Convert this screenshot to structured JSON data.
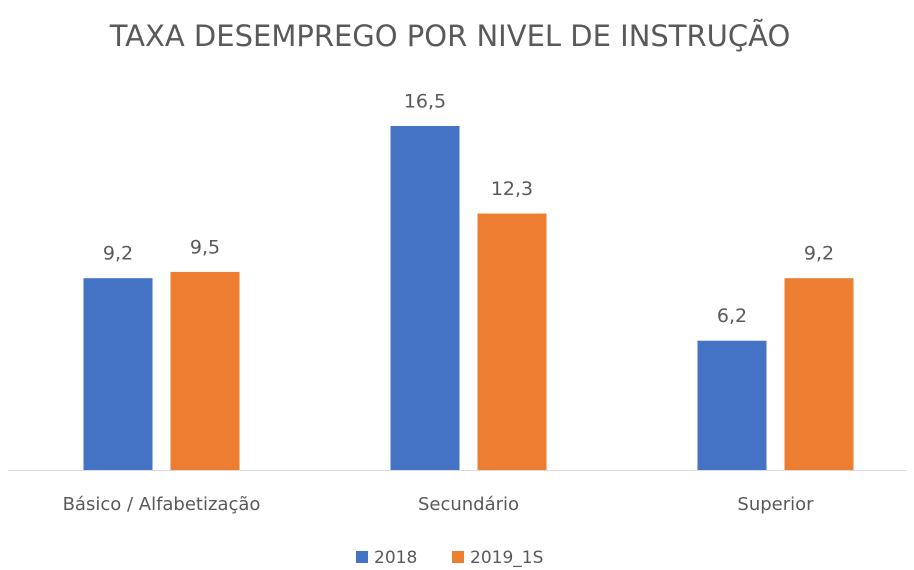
{
  "chart_data": {
    "type": "bar",
    "title": "TAXA DESEMPREGO POR NIVEL DE INSTRUÇÃO",
    "categories": [
      "Básico / Alfabetização",
      "Secundário",
      "Superior"
    ],
    "series": [
      {
        "name": "2018",
        "color": "#4472c4",
        "values": [
          9.2,
          16.5,
          6.2
        ],
        "value_labels": [
          "9,2",
          "16,5",
          "6,2"
        ]
      },
      {
        "name": "2019_1S",
        "color": "#ed7d31",
        "values": [
          9.5,
          12.3,
          9.2
        ],
        "value_labels": [
          "9,5",
          "12,3",
          "9,2"
        ]
      }
    ],
    "legend": "bottom"
  }
}
